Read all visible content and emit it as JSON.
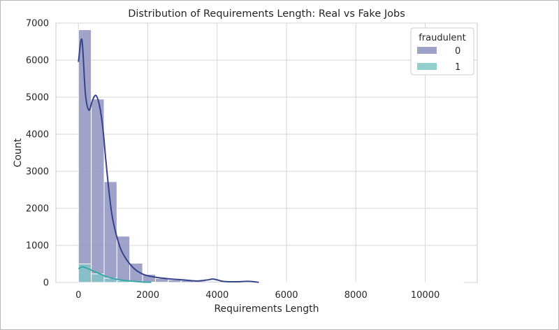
{
  "chart_data": {
    "type": "bar",
    "title": "Distribution of Requirements Length: Real vs Fake Jobs",
    "xlabel": "Requirements Length",
    "ylabel": "Count",
    "xlim": [
      -650,
      11500
    ],
    "ylim": [
      0,
      7000
    ],
    "x_ticks": [
      0,
      2000,
      4000,
      6000,
      8000,
      10000
    ],
    "y_ticks": [
      0,
      1000,
      2000,
      3000,
      4000,
      5000,
      6000,
      7000
    ],
    "grid": true,
    "legend": {
      "title": "fraudulent",
      "position": "top-right"
    },
    "bin_width": 370,
    "bin_start": 0,
    "series": [
      {
        "name": "0",
        "bar_color": "#8f93c0",
        "line_color": "#36428a",
        "values": [
          6820,
          4950,
          2720,
          1250,
          520,
          220,
          105,
          70,
          55,
          35,
          30,
          45,
          15,
          5,
          5,
          5,
          5,
          5,
          3,
          3,
          2,
          2,
          2,
          2,
          2,
          2,
          2,
          2,
          2,
          1
        ],
        "kde_x": [
          0,
          100,
          200,
          300,
          400,
          500,
          600,
          700,
          800,
          900,
          1000,
          1200,
          1400,
          1600,
          1800,
          2000,
          2300,
          2600,
          3000,
          3400,
          3700,
          3900,
          4200,
          4600,
          4900,
          5200
        ],
        "kde_y": [
          5950,
          6550,
          5100,
          4650,
          4900,
          5050,
          4800,
          4200,
          3200,
          2300,
          1650,
          950,
          600,
          380,
          250,
          180,
          130,
          100,
          70,
          40,
          65,
          90,
          25,
          20,
          30,
          5
        ]
      },
      {
        "name": "1",
        "bar_color": "#7fc7c7",
        "line_color": "#3aa7a7",
        "values": [
          500,
          230,
          115,
          55,
          20,
          10,
          5
        ],
        "kde_x": [
          0,
          100,
          200,
          400,
          600,
          800,
          1000,
          1200,
          1500,
          1800,
          2100
        ],
        "kde_y": [
          370,
          420,
          400,
          320,
          240,
          160,
          110,
          70,
          40,
          15,
          5
        ]
      }
    ]
  }
}
